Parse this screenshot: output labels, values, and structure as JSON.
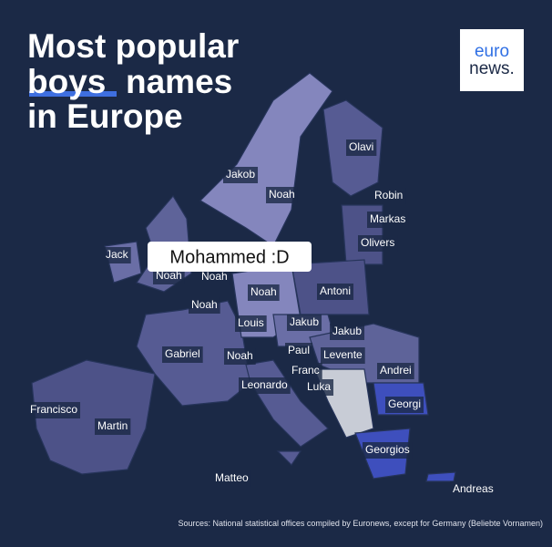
{
  "title_parts": [
    "Most popular",
    "boys",
    "names",
    "in Europe"
  ],
  "logo": [
    "euro",
    "news."
  ],
  "overlay": "Mohammed :D",
  "labels": [
    "Olavi",
    "Jakob",
    "Noah",
    "Robin",
    "Markas",
    "Olivers",
    "Jack",
    "Noah",
    "Noah",
    "Noah",
    "Noah",
    "Antoni",
    "Louis",
    "Jakub",
    "Jakub",
    "Gabriel",
    "Noah",
    "Paul",
    "Levente",
    "Andrei",
    "Franc",
    "Luka",
    "Leonardo",
    "Georgi",
    "Francisco",
    "Martin",
    "Georgios",
    "Matteo",
    "Andreas"
  ],
  "source": "Sources: National statistical offices compiled by Euronews, except for Germany (Beliebte Vornamen)"
}
